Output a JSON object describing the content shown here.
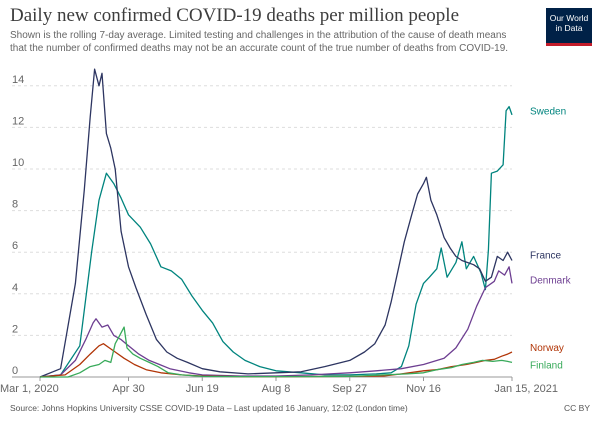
{
  "header": {
    "title": "Daily new confirmed COVID-19 deaths per million people",
    "subtitle": "Shown is the rolling 7-day average. Limited testing and challenges in the attribution of the cause of death means that the number of confirmed deaths may not be an accurate count of the true number of deaths from COVID-19."
  },
  "logo": {
    "line1": "Our World",
    "line2": "in Data",
    "bg": "#002147",
    "accent": "#c31c2a"
  },
  "footer": {
    "source": "Source: Johns Hopkins University CSSE COVID-19 Data – Last updated 16 January, 12:02 (London time)",
    "license": "CC BY"
  },
  "chart_data": {
    "type": "line",
    "title": "Daily new confirmed COVID-19 deaths per million people",
    "xlabel": "",
    "ylabel": "",
    "x_tick_labels": [
      "Mar 1, 2020",
      "Apr 30",
      "Jun 19",
      "Aug 8",
      "Sep 27",
      "Nov 16",
      "Jan 15, 2021"
    ],
    "x_ticks": [
      "2020-03-01",
      "2020-04-30",
      "2020-06-19",
      "2020-08-08",
      "2020-09-27",
      "2020-11-16",
      "2021-01-15"
    ],
    "xlim": [
      "2020-03-01",
      "2021-01-15"
    ],
    "y_ticks": [
      0,
      2,
      4,
      6,
      8,
      10,
      12,
      14
    ],
    "ylim": [
      0,
      15
    ],
    "grid": "horizontal dashed",
    "legend": "labels at line ends (right)",
    "series": [
      {
        "name": "Sweden",
        "color": "#00847e",
        "points": [
          [
            "2020-03-01",
            0
          ],
          [
            "2020-03-15",
            0.1
          ],
          [
            "2020-03-28",
            1.5
          ],
          [
            "2020-04-05",
            6
          ],
          [
            "2020-04-10",
            8.5
          ],
          [
            "2020-04-15",
            9.8
          ],
          [
            "2020-04-20",
            9.3
          ],
          [
            "2020-04-25",
            8.6
          ],
          [
            "2020-04-30",
            7.8
          ],
          [
            "2020-05-08",
            7.2
          ],
          [
            "2020-05-15",
            6.4
          ],
          [
            "2020-05-22",
            5.3
          ],
          [
            "2020-05-29",
            5.1
          ],
          [
            "2020-06-05",
            4.7
          ],
          [
            "2020-06-12",
            3.9
          ],
          [
            "2020-06-19",
            3.2
          ],
          [
            "2020-06-26",
            2.6
          ],
          [
            "2020-07-03",
            1.7
          ],
          [
            "2020-07-10",
            1.2
          ],
          [
            "2020-07-18",
            0.8
          ],
          [
            "2020-07-28",
            0.5
          ],
          [
            "2020-08-08",
            0.3
          ],
          [
            "2020-08-25",
            0.2
          ],
          [
            "2020-09-10",
            0.1
          ],
          [
            "2020-09-27",
            0.1
          ],
          [
            "2020-10-15",
            0.15
          ],
          [
            "2020-10-25",
            0.2
          ],
          [
            "2020-11-01",
            0.5
          ],
          [
            "2020-11-06",
            1.5
          ],
          [
            "2020-11-11",
            3.5
          ],
          [
            "2020-11-16",
            4.5
          ],
          [
            "2020-11-20",
            4.8
          ],
          [
            "2020-11-25",
            5.2
          ],
          [
            "2020-11-28",
            6.2
          ],
          [
            "2020-12-02",
            4.8
          ],
          [
            "2020-12-08",
            5.5
          ],
          [
            "2020-12-12",
            6.5
          ],
          [
            "2020-12-15",
            5.2
          ],
          [
            "2020-12-20",
            5.8
          ],
          [
            "2020-12-25",
            5.0
          ],
          [
            "2020-12-28",
            4.2
          ],
          [
            "2020-12-30",
            6.1
          ],
          [
            "2021-01-01",
            9.8
          ],
          [
            "2021-01-05",
            9.9
          ],
          [
            "2021-01-09",
            10.2
          ],
          [
            "2021-01-11",
            12.8
          ],
          [
            "2021-01-13",
            13.0
          ],
          [
            "2021-01-15",
            12.6
          ]
        ]
      },
      {
        "name": "France",
        "color": "#2d3561",
        "points": [
          [
            "2020-03-01",
            0
          ],
          [
            "2020-03-15",
            0.4
          ],
          [
            "2020-03-25",
            4.5
          ],
          [
            "2020-03-31",
            9
          ],
          [
            "2020-04-04",
            12.5
          ],
          [
            "2020-04-07",
            14.8
          ],
          [
            "2020-04-10",
            14.0
          ],
          [
            "2020-04-12",
            14.6
          ],
          [
            "2020-04-15",
            11.7
          ],
          [
            "2020-04-18",
            11.0
          ],
          [
            "2020-04-21",
            10.0
          ],
          [
            "2020-04-25",
            7.0
          ],
          [
            "2020-04-30",
            5.3
          ],
          [
            "2020-05-05",
            4.3
          ],
          [
            "2020-05-12",
            3.0
          ],
          [
            "2020-05-19",
            1.8
          ],
          [
            "2020-05-26",
            1.2
          ],
          [
            "2020-06-02",
            0.9
          ],
          [
            "2020-06-09",
            0.7
          ],
          [
            "2020-06-19",
            0.4
          ],
          [
            "2020-07-01",
            0.25
          ],
          [
            "2020-07-20",
            0.15
          ],
          [
            "2020-08-08",
            0.2
          ],
          [
            "2020-08-25",
            0.25
          ],
          [
            "2020-09-10",
            0.5
          ],
          [
            "2020-09-27",
            0.8
          ],
          [
            "2020-10-07",
            1.2
          ],
          [
            "2020-10-14",
            1.6
          ],
          [
            "2020-10-21",
            2.5
          ],
          [
            "2020-10-25",
            3.6
          ],
          [
            "2020-10-30",
            5.2
          ],
          [
            "2020-11-03",
            6.5
          ],
          [
            "2020-11-08",
            7.8
          ],
          [
            "2020-11-12",
            8.8
          ],
          [
            "2020-11-16",
            9.3
          ],
          [
            "2020-11-18",
            9.6
          ],
          [
            "2020-11-21",
            8.5
          ],
          [
            "2020-11-25",
            7.8
          ],
          [
            "2020-11-30",
            6.7
          ],
          [
            "2020-12-04",
            6.2
          ],
          [
            "2020-12-08",
            5.8
          ],
          [
            "2020-12-12",
            5.6
          ],
          [
            "2020-12-16",
            5.5
          ],
          [
            "2020-12-20",
            5.4
          ],
          [
            "2020-12-24",
            5.2
          ],
          [
            "2020-12-28",
            4.6
          ],
          [
            "2021-01-01",
            4.8
          ],
          [
            "2021-01-05",
            5.8
          ],
          [
            "2021-01-09",
            5.6
          ],
          [
            "2021-01-12",
            6.0
          ],
          [
            "2021-01-15",
            5.6
          ]
        ]
      },
      {
        "name": "Denmark",
        "color": "#6d3e91",
        "points": [
          [
            "2020-03-01",
            0
          ],
          [
            "2020-03-15",
            0.1
          ],
          [
            "2020-03-25",
            0.8
          ],
          [
            "2020-04-01",
            1.8
          ],
          [
            "2020-04-06",
            2.6
          ],
          [
            "2020-04-08",
            2.8
          ],
          [
            "2020-04-12",
            2.4
          ],
          [
            "2020-04-16",
            2.5
          ],
          [
            "2020-04-20",
            2.0
          ],
          [
            "2020-04-25",
            1.8
          ],
          [
            "2020-04-30",
            1.5
          ],
          [
            "2020-05-07",
            1.1
          ],
          [
            "2020-05-14",
            0.8
          ],
          [
            "2020-05-21",
            0.6
          ],
          [
            "2020-05-28",
            0.4
          ],
          [
            "2020-06-10",
            0.2
          ],
          [
            "2020-06-19",
            0.1
          ],
          [
            "2020-07-15",
            0.05
          ],
          [
            "2020-08-08",
            0.05
          ],
          [
            "2020-09-01",
            0.1
          ],
          [
            "2020-09-27",
            0.2
          ],
          [
            "2020-10-15",
            0.3
          ],
          [
            "2020-11-01",
            0.4
          ],
          [
            "2020-11-16",
            0.6
          ],
          [
            "2020-11-30",
            0.9
          ],
          [
            "2020-12-08",
            1.4
          ],
          [
            "2020-12-16",
            2.3
          ],
          [
            "2020-12-22",
            3.4
          ],
          [
            "2020-12-28",
            4.3
          ],
          [
            "2021-01-03",
            4.6
          ],
          [
            "2021-01-06",
            5.1
          ],
          [
            "2021-01-10",
            4.9
          ],
          [
            "2021-01-13",
            5.3
          ],
          [
            "2021-01-15",
            4.5
          ]
        ]
      },
      {
        "name": "Norway",
        "color": "#b13507",
        "points": [
          [
            "2020-03-01",
            0
          ],
          [
            "2020-03-18",
            0.1
          ],
          [
            "2020-03-28",
            0.6
          ],
          [
            "2020-04-04",
            1.1
          ],
          [
            "2020-04-10",
            1.5
          ],
          [
            "2020-04-13",
            1.6
          ],
          [
            "2020-04-17",
            1.4
          ],
          [
            "2020-04-21",
            1.2
          ],
          [
            "2020-04-27",
            0.9
          ],
          [
            "2020-05-04",
            0.6
          ],
          [
            "2020-05-12",
            0.35
          ],
          [
            "2020-05-22",
            0.2
          ],
          [
            "2020-06-05",
            0.1
          ],
          [
            "2020-06-19",
            0.05
          ],
          [
            "2020-07-15",
            0.02
          ],
          [
            "2020-08-08",
            0.02
          ],
          [
            "2020-09-27",
            0.03
          ],
          [
            "2020-10-20",
            0.05
          ],
          [
            "2020-11-01",
            0.15
          ],
          [
            "2020-11-16",
            0.3
          ],
          [
            "2020-11-25",
            0.35
          ],
          [
            "2020-12-05",
            0.5
          ],
          [
            "2020-12-15",
            0.6
          ],
          [
            "2020-12-22",
            0.7
          ],
          [
            "2020-12-28",
            0.8
          ],
          [
            "2021-01-03",
            0.85
          ],
          [
            "2021-01-08",
            1.0
          ],
          [
            "2021-01-12",
            1.1
          ],
          [
            "2021-01-15",
            1.2
          ]
        ]
      },
      {
        "name": "Finland",
        "color": "#38aa5a",
        "points": [
          [
            "2020-03-01",
            0
          ],
          [
            "2020-03-20",
            0
          ],
          [
            "2020-03-28",
            0.2
          ],
          [
            "2020-04-04",
            0.5
          ],
          [
            "2020-04-10",
            0.6
          ],
          [
            "2020-04-14",
            0.8
          ],
          [
            "2020-04-18",
            0.7
          ],
          [
            "2020-04-21",
            1.6
          ],
          [
            "2020-04-24",
            2.0
          ],
          [
            "2020-04-27",
            2.4
          ],
          [
            "2020-04-29",
            1.4
          ],
          [
            "2020-05-03",
            1.1
          ],
          [
            "2020-05-08",
            0.9
          ],
          [
            "2020-05-14",
            0.7
          ],
          [
            "2020-05-20",
            0.5
          ],
          [
            "2020-05-27",
            0.2
          ],
          [
            "2020-06-05",
            0.1
          ],
          [
            "2020-06-19",
            0.03
          ],
          [
            "2020-07-15",
            0.02
          ],
          [
            "2020-08-08",
            0.02
          ],
          [
            "2020-09-27",
            0.03
          ],
          [
            "2020-10-20",
            0.1
          ],
          [
            "2020-11-05",
            0.15
          ],
          [
            "2020-11-16",
            0.2
          ],
          [
            "2020-11-25",
            0.35
          ],
          [
            "2020-12-05",
            0.45
          ],
          [
            "2020-12-12",
            0.6
          ],
          [
            "2020-12-20",
            0.7
          ],
          [
            "2020-12-26",
            0.8
          ],
          [
            "2021-01-02",
            0.75
          ],
          [
            "2021-01-08",
            0.8
          ],
          [
            "2021-01-12",
            0.75
          ],
          [
            "2021-01-15",
            0.7
          ]
        ]
      }
    ]
  }
}
